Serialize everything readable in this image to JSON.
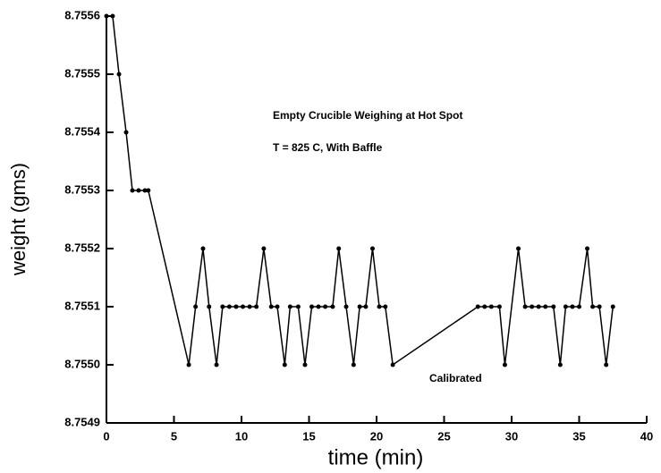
{
  "chart_data": {
    "type": "line",
    "x_label": "time (min)",
    "y_label": "weight (gms)",
    "annotations": [
      "Empty Crucible Weighing at Hot Spot",
      "T = 825 C, With Baffle",
      "Calibrated"
    ],
    "x": [
      0,
      0.46,
      0.93,
      1.46,
      1.92,
      2.38,
      2.85,
      3.1,
      6.1,
      6.6,
      7.15,
      7.6,
      8.15,
      8.6,
      9.1,
      9.6,
      10.1,
      10.6,
      11.1,
      11.65,
      12.2,
      12.65,
      13.2,
      13.6,
      14.2,
      14.7,
      15.2,
      15.7,
      16.2,
      16.75,
      17.2,
      17.75,
      18.3,
      18.75,
      19.2,
      19.7,
      20.2,
      20.65,
      21.2,
      27.5,
      28.0,
      28.5,
      29.1,
      29.5,
      30.5,
      31.0,
      31.5,
      32.0,
      32.5,
      33.1,
      33.6,
      34.0,
      34.5,
      35.0,
      35.6,
      36.0,
      36.5,
      37.0,
      37.5
    ],
    "series": [
      {
        "color": "#000000",
        "values": [
          8.7556,
          8.7556,
          8.7555,
          8.7554,
          8.7553,
          8.7553,
          8.7553,
          8.7553,
          8.755,
          8.7551,
          8.7552,
          8.7551,
          8.755,
          8.7551,
          8.7551,
          8.7551,
          8.7551,
          8.7551,
          8.7551,
          8.7552,
          8.7551,
          8.7551,
          8.755,
          8.7551,
          8.7551,
          8.755,
          8.7551,
          8.7551,
          8.7551,
          8.7551,
          8.7552,
          8.7551,
          8.755,
          8.7551,
          8.7551,
          8.7552,
          8.7551,
          8.7551,
          8.755,
          8.7551,
          8.7551,
          8.7551,
          8.7551,
          8.755,
          8.7552,
          8.7551,
          8.7551,
          8.7551,
          8.7551,
          8.7551,
          8.755,
          8.7551,
          8.7551,
          8.7551,
          8.7552,
          8.7551,
          8.7551,
          8.755,
          8.7551
        ]
      }
    ],
    "xlim": [
      0,
      40
    ],
    "xticks": [
      0,
      5,
      10,
      15,
      20,
      25,
      30,
      35,
      40
    ],
    "ylim": [
      8.7549,
      8.7556
    ],
    "yticks": [
      8.7549,
      {
        "value": 8.755,
        "label": "8.7550"
      },
      8.7551,
      8.7552,
      8.7553,
      8.7554,
      8.7555,
      8.7556
    ]
  }
}
